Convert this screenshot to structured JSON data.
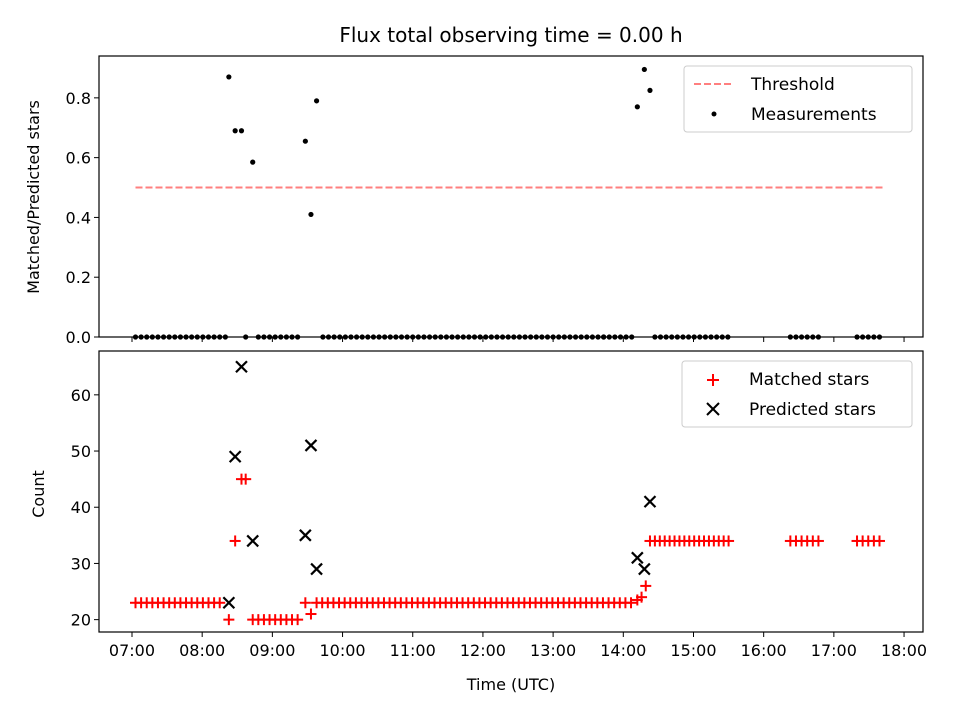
{
  "figure": {
    "title": "Flux total observing time = 0.00 h",
    "xlabel": "Time (UTC)",
    "xticks": [
      "07:00",
      "08:00",
      "09:00",
      "10:00",
      "11:00",
      "12:00",
      "13:00",
      "14:00",
      "15:00",
      "16:00",
      "17:00",
      "18:00"
    ],
    "colors": {
      "threshold": "#ff7f7f",
      "measurements": "#000000",
      "matched": "#ff0000",
      "predicted": "#000000"
    }
  },
  "chart_data": [
    {
      "type": "scatter",
      "ylabel": "Matched/Predicted stars",
      "xlim": [
        6.53,
        18.27
      ],
      "ylim": [
        0,
        0.94
      ],
      "yticks": [
        "0.0",
        "0.2",
        "0.4",
        "0.6",
        "0.8"
      ],
      "ytick_values": [
        0,
        0.2,
        0.4,
        0.6,
        0.8
      ],
      "legend_position": "upper right",
      "threshold": {
        "name": "Threshold",
        "value": 0.5,
        "x": [
          7.05,
          17.72
        ]
      },
      "measurements": {
        "name": "Measurements",
        "points": [
          [
            8.38,
            0.87
          ],
          [
            8.47,
            0.69
          ],
          [
            8.56,
            0.69
          ],
          [
            8.72,
            0.585
          ],
          [
            9.47,
            0.655
          ],
          [
            9.55,
            0.41
          ],
          [
            9.63,
            0.79
          ],
          [
            14.2,
            0.77
          ],
          [
            14.3,
            0.895
          ],
          [
            14.38,
            0.825
          ]
        ],
        "zero_ranges": [
          [
            7.05,
            8.35,
            0.08
          ],
          [
            8.62,
            8.62,
            0.1
          ],
          [
            8.8,
            9.38,
            0.08
          ],
          [
            9.72,
            13.72,
            0.08
          ],
          [
            13.72,
            14.15,
            0.08
          ],
          [
            14.45,
            15.55,
            0.08
          ],
          [
            16.38,
            16.82,
            0.08
          ],
          [
            17.33,
            17.72,
            0.08
          ]
        ]
      }
    },
    {
      "type": "scatter",
      "ylabel": "Count",
      "xlim": [
        6.53,
        18.27
      ],
      "ylim": [
        17.8,
        67.8
      ],
      "yticks": [
        "20",
        "30",
        "40",
        "50",
        "60"
      ],
      "ytick_values": [
        20,
        30,
        40,
        50,
        60
      ],
      "legend_position": "upper right",
      "matched": {
        "name": "Matched stars",
        "runs": [
          [
            7.05,
            8.3,
            0.08,
            23
          ],
          [
            8.38,
            8.38,
            0.1,
            20
          ],
          [
            8.47,
            8.47,
            0.1,
            34
          ],
          [
            8.56,
            8.62,
            0.06,
            45
          ],
          [
            8.72,
            9.38,
            0.08,
            20
          ],
          [
            9.47,
            9.47,
            0.1,
            23
          ],
          [
            9.55,
            9.55,
            0.1,
            21
          ],
          [
            9.63,
            14.15,
            0.08,
            23
          ],
          [
            14.2,
            14.2,
            0.1,
            23.5
          ],
          [
            14.26,
            14.26,
            0.1,
            24
          ],
          [
            14.32,
            14.32,
            0.1,
            26
          ],
          [
            14.38,
            15.55,
            0.07,
            34
          ],
          [
            16.38,
            16.82,
            0.08,
            34
          ],
          [
            17.33,
            17.72,
            0.08,
            34
          ]
        ]
      },
      "predicted": {
        "name": "Predicted stars",
        "points": [
          [
            8.38,
            23
          ],
          [
            8.47,
            49
          ],
          [
            8.56,
            65
          ],
          [
            8.72,
            34
          ],
          [
            9.47,
            35
          ],
          [
            9.55,
            51
          ],
          [
            9.63,
            29
          ],
          [
            14.2,
            31
          ],
          [
            14.3,
            29
          ],
          [
            14.38,
            41
          ]
        ]
      }
    }
  ]
}
